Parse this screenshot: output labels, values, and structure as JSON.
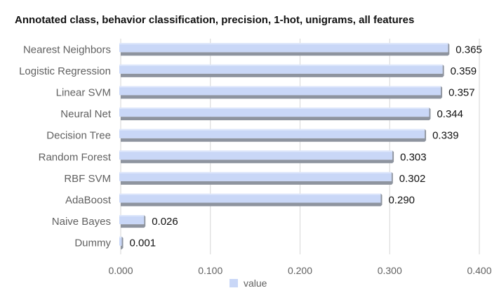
{
  "chart_data": {
    "type": "bar",
    "orientation": "horizontal",
    "title": "Annotated class, behavior classification, precision, 1-hot, unigrams, all features",
    "xlabel": "",
    "ylabel": "",
    "categories": [
      "Nearest Neighbors",
      "Logistic Regression",
      "Linear SVM",
      "Neural Net",
      "Decision Tree",
      "Random Forest",
      "RBF SVM",
      "AdaBoost",
      "Naive Bayes",
      "Dummy"
    ],
    "series": [
      {
        "name": "value",
        "values": [
          0.365,
          0.359,
          0.357,
          0.344,
          0.339,
          0.303,
          0.302,
          0.29,
          0.026,
          0.001
        ],
        "labels": [
          "0.365",
          "0.359",
          "0.357",
          "0.344",
          "0.339",
          "0.303",
          "0.302",
          "0.290",
          "0.026",
          "0.001"
        ]
      }
    ],
    "xlim": [
      0,
      0.4
    ],
    "xticks": [
      0.0,
      0.1,
      0.2,
      0.3,
      0.4
    ],
    "xtick_labels": [
      "0.000",
      "0.100",
      "0.200",
      "0.300",
      "0.400"
    ],
    "grid": "vertical",
    "legend": "bottom",
    "colors": {
      "bar": "#c9d7f7",
      "bar_shadow": "#8e949f",
      "grid": "#d6d6d6"
    }
  }
}
